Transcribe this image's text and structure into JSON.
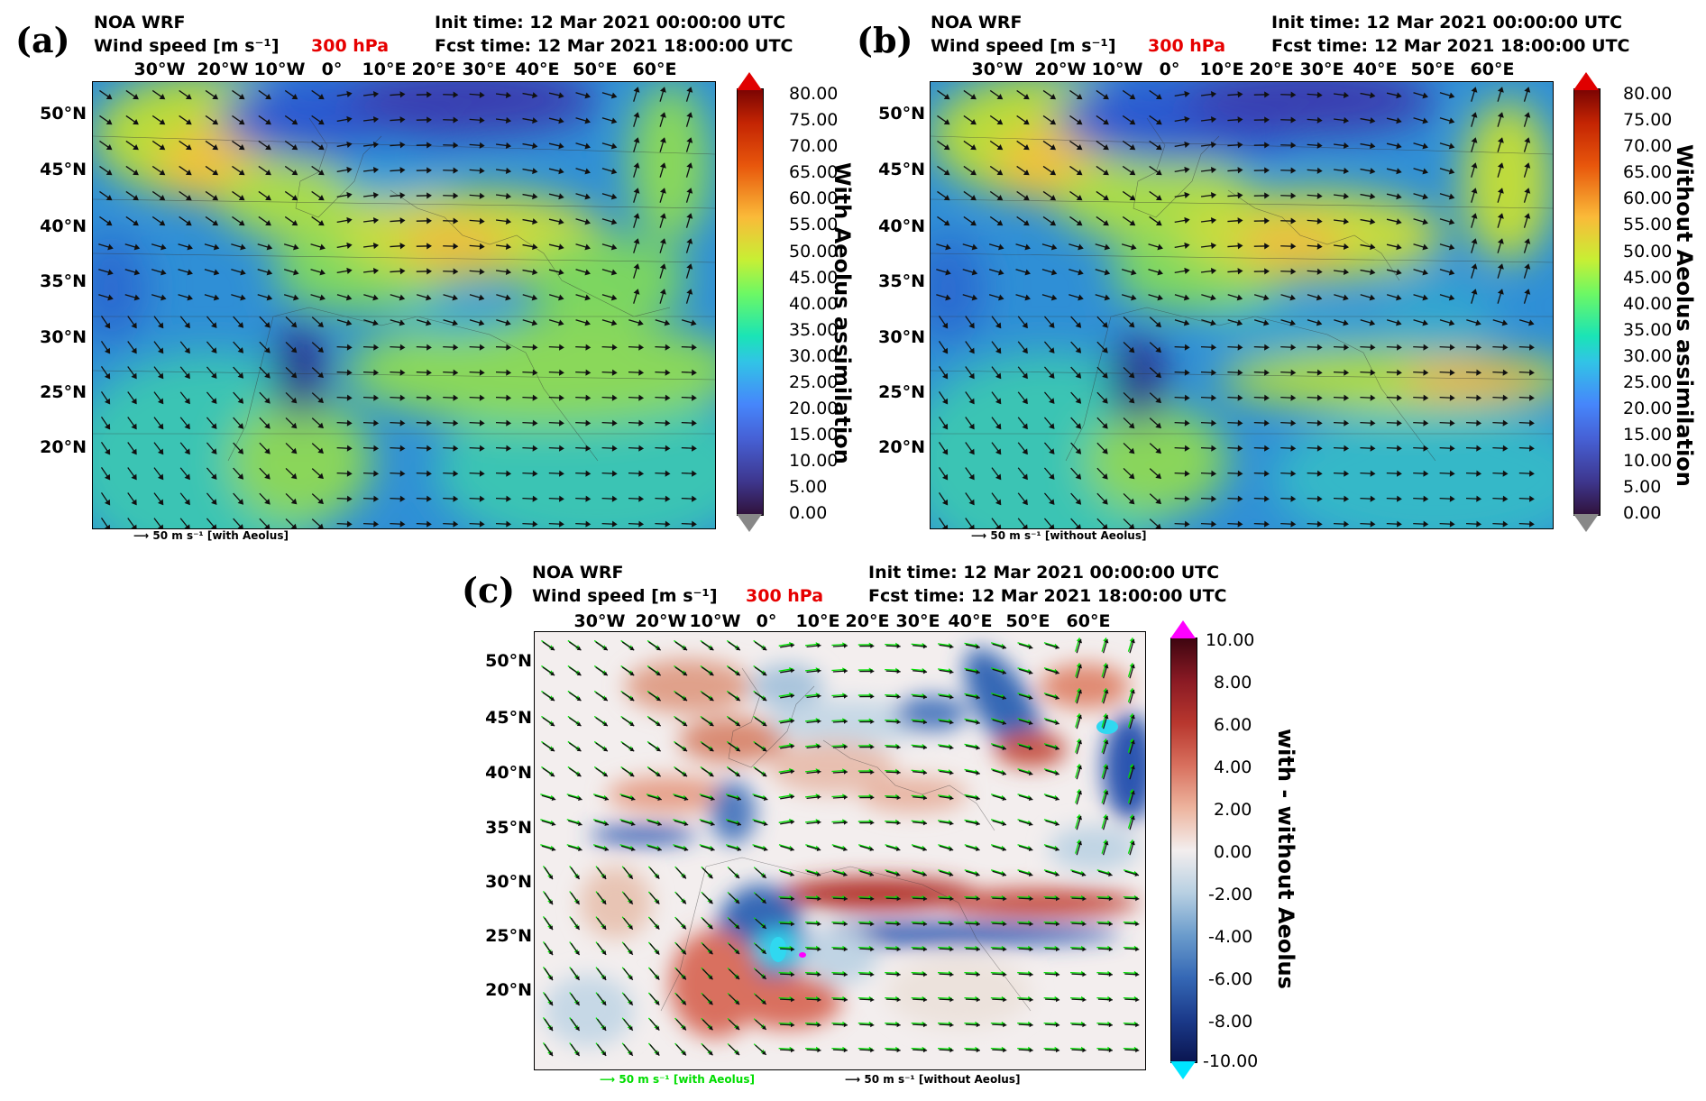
{
  "panel_a": {
    "label": "(a)",
    "model": "NOA WRF",
    "variable": "Wind speed  [m s⁻¹]",
    "level": "300 hPa",
    "init_time": "Init time: 12 Mar 2021 00:00:00 UTC",
    "fcst_time": "Fcst time: 12 Mar 2021 18:00:00 UTC",
    "colorbar_label": "With Aeolus assimilation",
    "vector_key": "50 m s⁻¹ [with Aeolus]"
  },
  "panel_b": {
    "label": "(b)",
    "model": "NOA WRF",
    "variable": "Wind speed  [m s⁻¹]",
    "level": "300 hPa",
    "init_time": "Init time: 12 Mar 2021 00:00:00 UTC",
    "fcst_time": "Fcst time: 12 Mar 2021 18:00:00 UTC",
    "colorbar_label": "Without Aeolus assimilation",
    "vector_key": "50 m s⁻¹ [without Aeolus]"
  },
  "panel_c": {
    "label": "(c)",
    "model": "NOA WRF",
    "variable": "Wind speed  [m s⁻¹]",
    "level": "300 hPa",
    "init_time": "Init time: 12 Mar 2021 00:00:00 UTC",
    "fcst_time": "Fcst time: 12 Mar 2021 18:00:00 UTC",
    "colorbar_label": "with - without Aeolus",
    "vector_key_with": "50 m s⁻¹ [with Aeolus]",
    "vector_key_without": "50 m s⁻¹ [without Aeolus]"
  },
  "lon_labels": [
    "30°W",
    "20°W",
    "10°W",
    "0°",
    "10°E",
    "20°E",
    "30°E",
    "40°E",
    "50°E",
    "60°E"
  ],
  "lat_labels": [
    "50°N",
    "45°N",
    "40°N",
    "35°N",
    "30°N",
    "25°N",
    "20°N"
  ],
  "speed_ticks": [
    "80.00",
    "75.00",
    "70.00",
    "65.00",
    "60.00",
    "55.00",
    "50.00",
    "45.00",
    "40.00",
    "35.00",
    "30.00",
    "25.00",
    "20.00",
    "15.00",
    "10.00",
    "5.00",
    "0.00"
  ],
  "diff_ticks": [
    "10.00",
    "8.00",
    "6.00",
    "4.00",
    "2.00",
    "0.00",
    "-2.00",
    "-4.00",
    "-6.00",
    "-8.00",
    "-10.00"
  ],
  "colors": {
    "level_text": "#e60000",
    "speed_over": "#e00000",
    "speed_under": "#ffffff",
    "diff_over": "#ff00ff",
    "diff_under": "#00e5ff",
    "key_green": "#00dd00"
  }
}
